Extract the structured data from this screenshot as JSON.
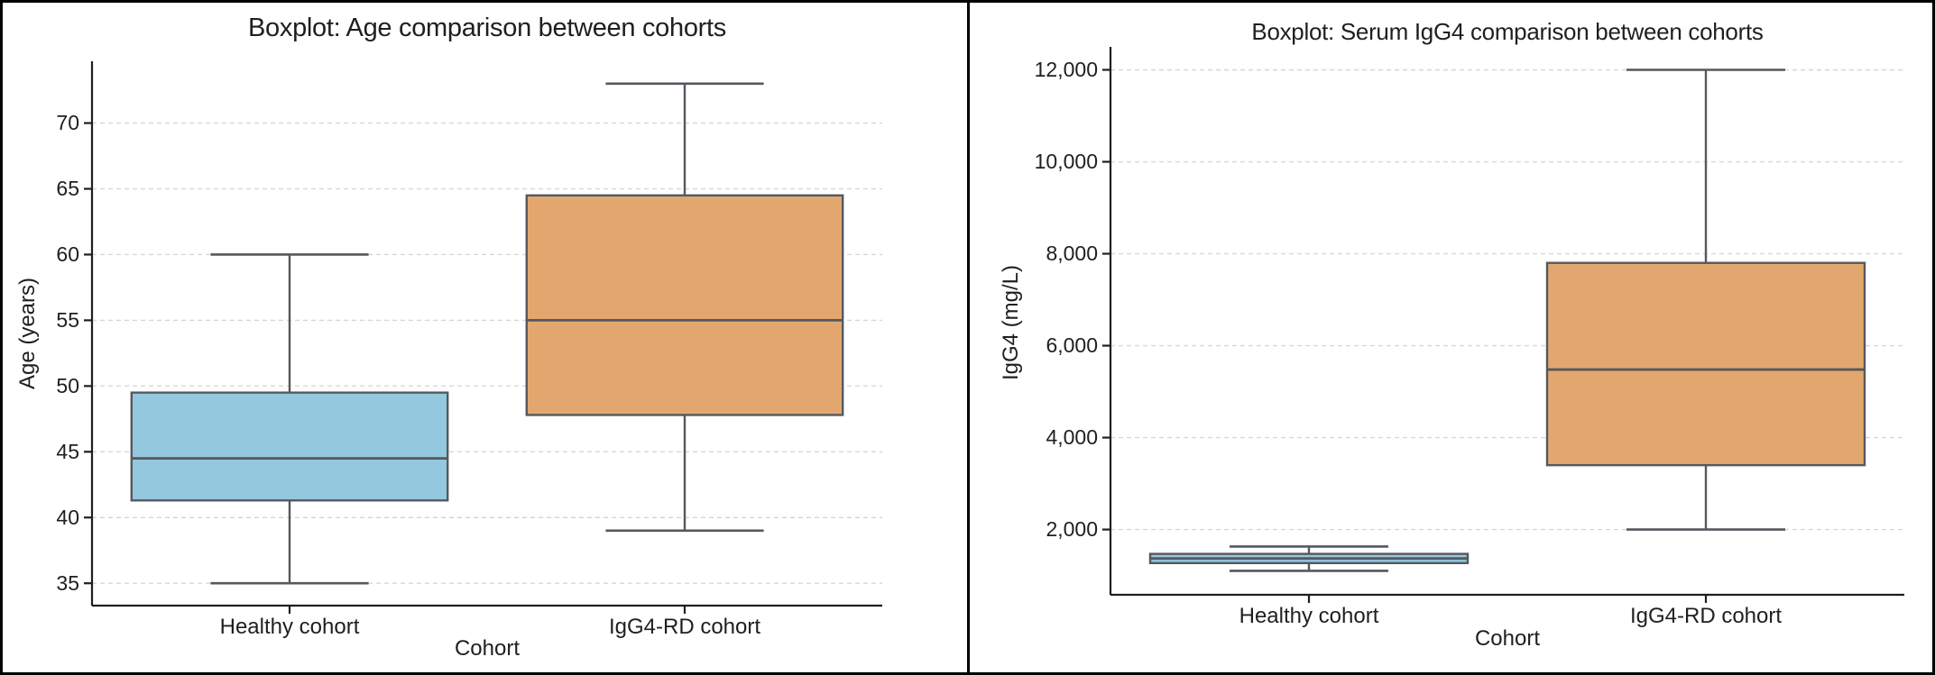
{
  "figure": {
    "background": "#ffffff",
    "frame_color": "#000000"
  },
  "colors": {
    "healthy_fill": "#93c8de",
    "igg4rd_fill": "#e2a76f",
    "box_edge": "#54595e",
    "grid": "#d8d8d8",
    "spine": "#1f1f1f",
    "text": "#1f1f1f"
  },
  "chart_data": [
    {
      "type": "boxplot",
      "title": "Boxplot: Age comparison between cohorts",
      "xlabel": "Cohort",
      "ylabel": "Age (years)",
      "categories": [
        "Healthy cohort",
        "IgG4-RD cohort"
      ],
      "ylim": [
        33.3,
        74.7
      ],
      "yticks": [
        35,
        40,
        45,
        50,
        55,
        60,
        65,
        70
      ],
      "ytick_labels": [
        "35",
        "40",
        "45",
        "50",
        "55",
        "60",
        "65",
        "70"
      ],
      "grid": "horizontal-dashed",
      "legend": "none",
      "series": [
        {
          "name": "Healthy cohort",
          "whisker_low": 35,
          "q1": 41.3,
          "median": 44.5,
          "q3": 49.5,
          "whisker_high": 60,
          "fill": "#93c8de"
        },
        {
          "name": "IgG4-RD cohort",
          "whisker_low": 39,
          "q1": 47.8,
          "median": 55,
          "q3": 64.5,
          "whisker_high": 73,
          "fill": "#e2a76f"
        }
      ]
    },
    {
      "type": "boxplot",
      "title": "Boxplot: Serum IgG4 comparison between cohorts",
      "xlabel": "Cohort",
      "ylabel": "IgG4 (mg/L)",
      "categories": [
        "Healthy cohort",
        "IgG4-RD cohort"
      ],
      "ylim": [
        580,
        12500
      ],
      "yticks": [
        2000,
        4000,
        6000,
        8000,
        10000,
        12000
      ],
      "ytick_labels": [
        "2,000",
        "4,000",
        "6,000",
        "8,000",
        "10,000",
        "12,000"
      ],
      "grid": "horizontal-dashed",
      "legend": "none",
      "series": [
        {
          "name": "Healthy cohort",
          "whisker_low": 1100,
          "q1": 1270,
          "median": 1370,
          "q3": 1470,
          "whisker_high": 1630,
          "fill": "#93c8de"
        },
        {
          "name": "IgG4-RD cohort",
          "whisker_low": 2000,
          "q1": 3400,
          "median": 5480,
          "q3": 7800,
          "whisker_high": 12000,
          "fill": "#e2a76f"
        }
      ]
    }
  ]
}
